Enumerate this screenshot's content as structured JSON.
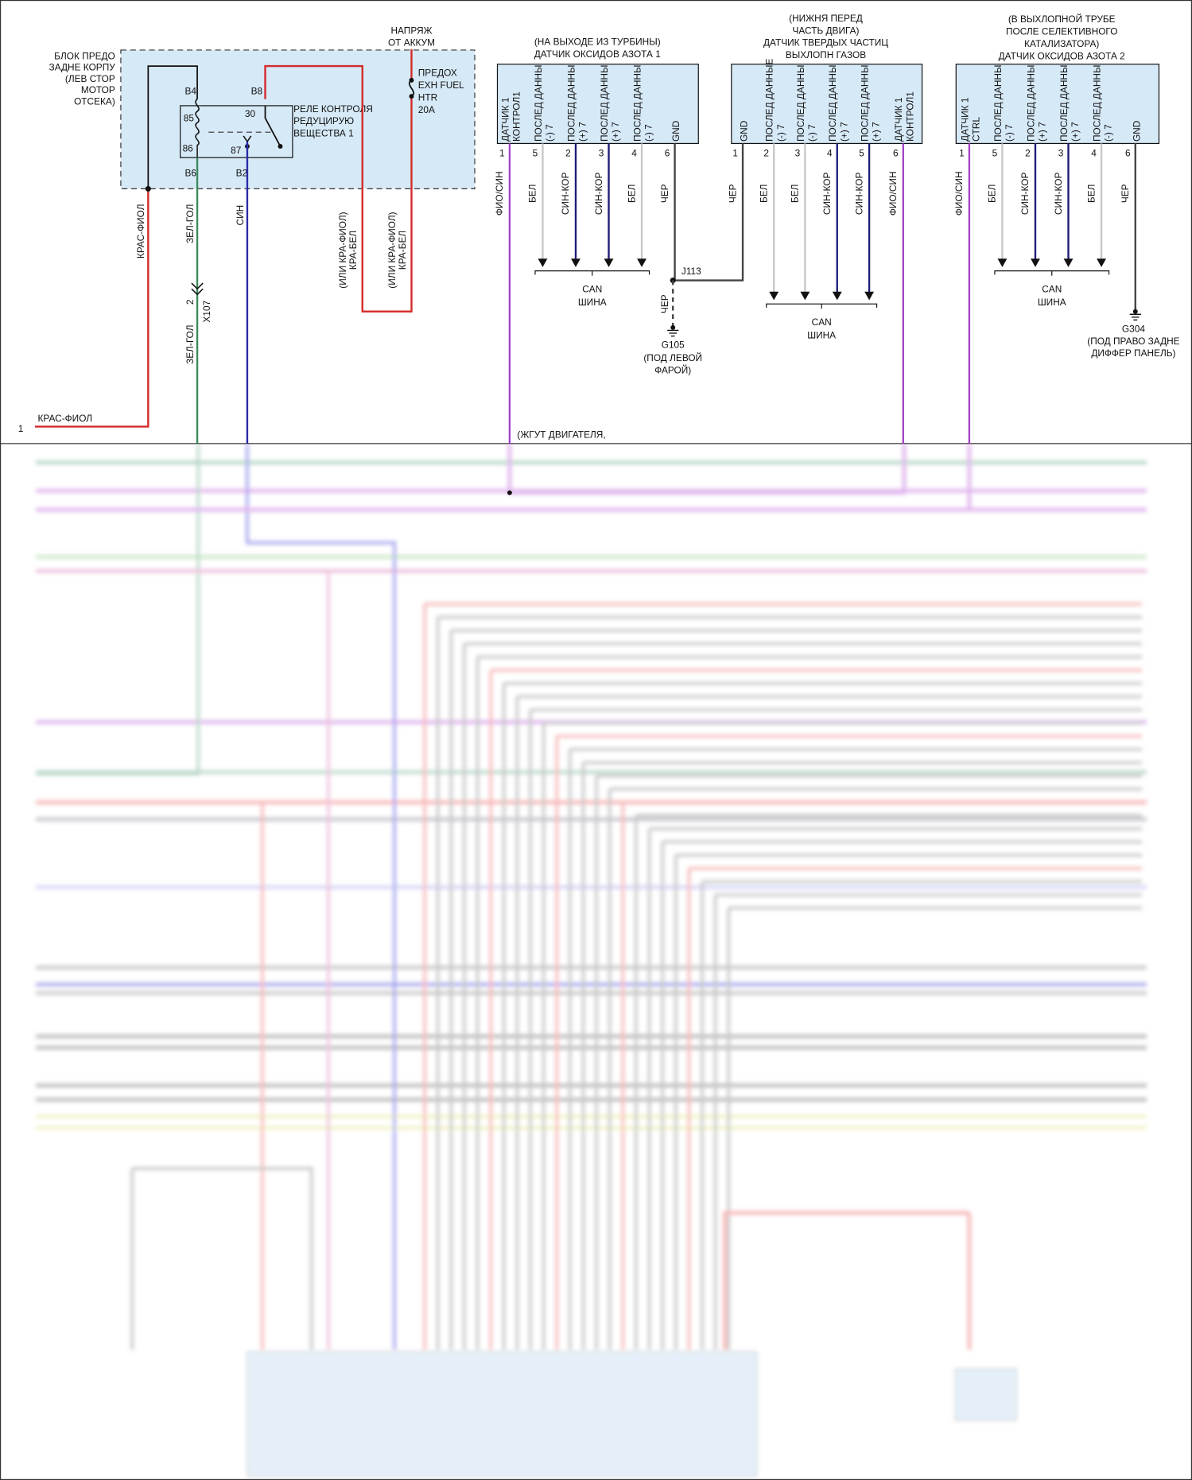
{
  "relay_block": {
    "label": [
      "БЛОК ПРЕДО",
      "ЗАДНЕ КОРПУ",
      "(ЛЕВ СТОР",
      "МОТОР",
      "ОТСЕКА)"
    ],
    "relay_label": [
      "РЕЛЕ КОНТРОЛЯ",
      "РЕДУЦИРУЮ",
      "ВЕЩЕСТВА 1"
    ],
    "pins": [
      "B4",
      "B8",
      "85",
      "30",
      "86",
      "87",
      "B6",
      "B2"
    ],
    "fuse": [
      "ПРЕДОХ",
      "EXH FUEL",
      "HTR",
      "20A"
    ],
    "battery": [
      "НАПРЯЖ",
      "ОТ АККУМ"
    ]
  },
  "left_wires": {
    "red": "КРАС-ФИОЛ",
    "green": "ЗЕЛ-ГОЛ",
    "blue": "СИН",
    "alt1": [
      "(ИЛИ КРА-ФИОЛ)",
      "КРА-БЕЛ"
    ],
    "alt2": [
      "(ИЛИ КРА-ФИОЛ)",
      "КРА-БЕЛ"
    ],
    "connector_pin": "2",
    "connector": "X107",
    "green_below": "ЗЕЛ-ГОЛ",
    "terminal_pin": "1",
    "terminal_wire": "КРАС-ФИОЛ"
  },
  "harness_note": "(ЖГУТ ДВИГАТЕЛЯ,",
  "sensors": [
    {
      "title": [
        "(НА ВЫХОДЕ ИЗ ТУРБИНЫ)",
        "ДАТЧИК ОКСИДОВ АЗОТА 1"
      ],
      "pins": [
        {
          "label": [
            "ДАТЧИК 1",
            "КОНТРОЛ1"
          ],
          "number": "1",
          "wire": "ФИО/СИН"
        },
        {
          "label": [
            "ПОСЛЕД ДАННЫ",
            "(-) 7"
          ],
          "number": "5",
          "wire": "БЕЛ"
        },
        {
          "label": [
            "ПОСЛЕД ДАННЫ",
            "(+) 7"
          ],
          "number": "2",
          "wire": "СИН-КОР"
        },
        {
          "label": [
            "ПОСЛЕД ДАННЫ",
            "(+) 7"
          ],
          "number": "3",
          "wire": "СИН-КОР"
        },
        {
          "label": [
            "ПОСЛЕД ДАННЫ",
            "(-) 7"
          ],
          "number": "4",
          "wire": "БЕЛ"
        },
        {
          "label": [
            "GND"
          ],
          "number": "6",
          "wire": "ЧЕР"
        }
      ],
      "bus": [
        "CAN",
        "ШИНА"
      ]
    },
    {
      "title": [
        "(НИЖНЯ ПЕРЕД",
        "ЧАСТЬ ДВИГА)",
        "ДАТЧИК ТВЕРДЫХ ЧАСТИЦ",
        "ВЫХЛОПН ГАЗОВ"
      ],
      "pins": [
        {
          "label": [
            "GND"
          ],
          "number": "1",
          "wire": "ЧЕР"
        },
        {
          "label": [
            "ПОСЛЕД ДАННЫЕ",
            "(-) 7"
          ],
          "number": "2",
          "wire": "БЕЛ"
        },
        {
          "label": [
            "ПОСЛЕД ДАННЫ",
            "(-) 7"
          ],
          "number": "3",
          "wire": "БЕЛ"
        },
        {
          "label": [
            "ПОСЛЕД ДАННЫ",
            "(+) 7"
          ],
          "number": "4",
          "wire": "СИН-КОР"
        },
        {
          "label": [
            "ПОСЛЕД ДАННЫ",
            "(+) 7"
          ],
          "number": "5",
          "wire": "СИН-КОР"
        },
        {
          "label": [
            "ДАТЧИК 1",
            "КОНТРОЛ1"
          ],
          "number": "6",
          "wire": "ФИО/СИН"
        }
      ],
      "bus": [
        "CAN",
        "ШИНА"
      ]
    },
    {
      "title": [
        "(В ВЫХЛОПНОЙ ТРУБЕ",
        "ПОСЛЕ СЕЛЕКТИВНОГО",
        "КАТАЛИЗАТОРА)",
        "ДАТЧИК ОКСИДОВ АЗОТА 2"
      ],
      "pins": [
        {
          "label": [
            "ДАТЧИК 1",
            "CTRL"
          ],
          "number": "1",
          "wire": "ФИО/СИН"
        },
        {
          "label": [
            "ПОСЛЕД ДАННЫ",
            "(-) 7"
          ],
          "number": "5",
          "wire": "БЕЛ"
        },
        {
          "label": [
            "ПОСЛЕД ДАННЫ",
            "(+) 7"
          ],
          "number": "2",
          "wire": "СИН-КОР"
        },
        {
          "label": [
            "ПОСЛЕД ДАННЫ",
            "(+) 7"
          ],
          "number": "3",
          "wire": "СИН-КОР"
        },
        {
          "label": [
            "ПОСЛЕД ДАННЫ",
            "(-) 7"
          ],
          "number": "4",
          "wire": "БЕЛ"
        },
        {
          "label": [
            "GND"
          ],
          "number": "6",
          "wire": "ЧЕР"
        }
      ],
      "bus": [
        "CAN",
        "ШИНА"
      ]
    }
  ],
  "splice": {
    "name": "J113",
    "wire": "ЧЕР"
  },
  "grounds": [
    {
      "name": "G105",
      "location": [
        "(ПОД ЛЕВОЙ",
        "ФАРОЙ)"
      ]
    },
    {
      "name": "G304",
      "location": [
        "(ПОД ПРАВО ЗАДНЕ",
        "ДИФФЕР ПАНЕЛЬ)"
      ]
    }
  ]
}
